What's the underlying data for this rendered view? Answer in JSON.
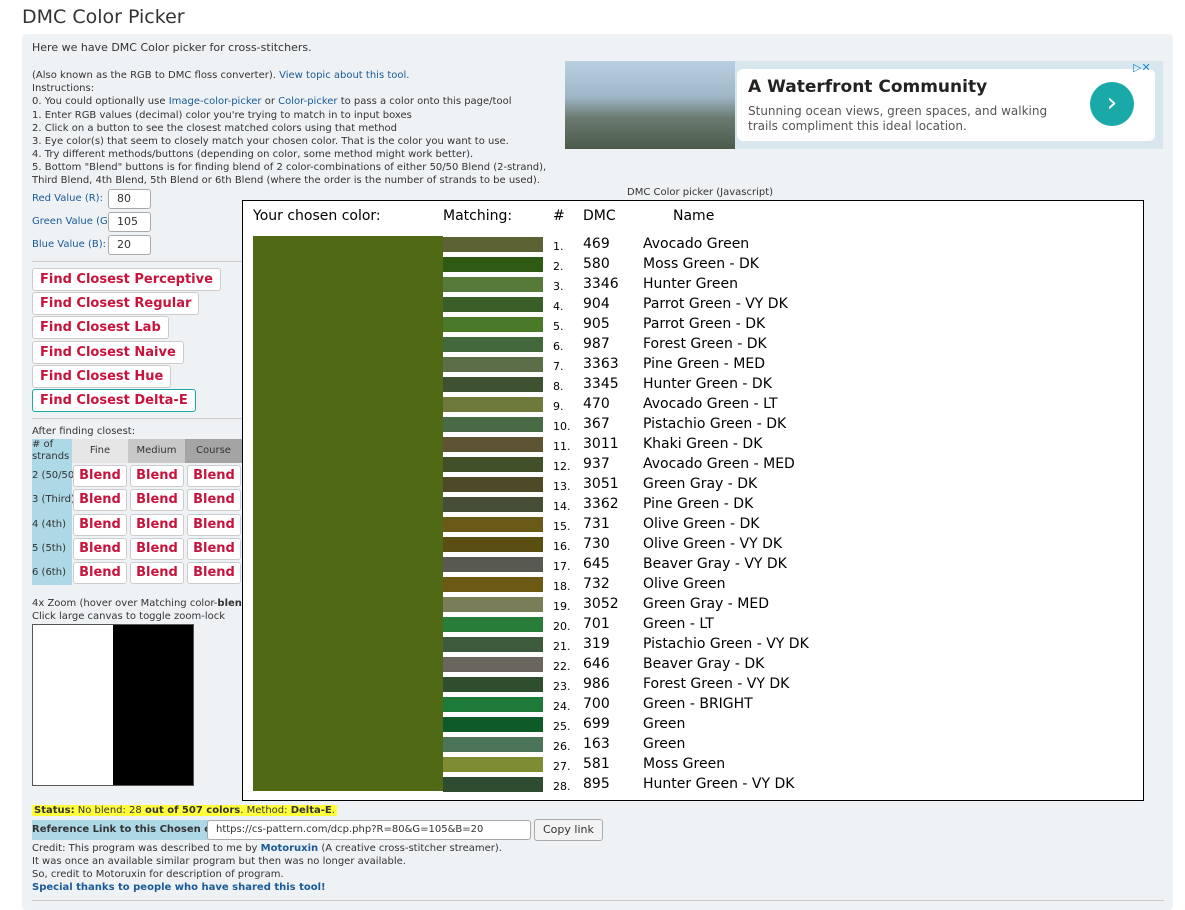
{
  "header": {
    "title": "DMC Color Picker"
  },
  "intro": "Here we have DMC Color picker for cross-stitchers.",
  "about": {
    "text": "(Also known as the RGB to DMC floss converter). ",
    "link": "View topic about this tool."
  },
  "instructions": {
    "heading": "Instructions:",
    "line0": [
      "0. You could optionally use ",
      "Image-color-picker",
      " or ",
      "Color-picker",
      " to pass a color onto this page/tool"
    ],
    "lines": [
      "1. Enter RGB values (decimal) color you're trying to match in to input boxes",
      "2. Click on a button to see the closest matched colors using that method",
      "3. Eye color(s) that seem to closely match your chosen color. That is the color you want to use.",
      "4. Try different methods/buttons (depending on color, some method might work better).",
      "5. Bottom \"Blend\" buttons is for finding blend of 2 color-combinations of either 50/50 Blend (2-strand), Third Blend, 4th Blend, 5th Blend or 6th Blend (where the order is the number of strands to be used)."
    ]
  },
  "inputs": [
    {
      "label": "Red Value (R):",
      "value": 80
    },
    {
      "label": "Green Value (G):",
      "value": 105
    },
    {
      "label": "Blue Value (B):",
      "value": 20
    }
  ],
  "buttons": [
    "Find Closest Perceptive",
    "Find Closest Regular",
    "Find Closest Lab",
    "Find Closest Naive",
    "Find Closest Hue",
    "Find Closest Delta-E"
  ],
  "blend_table": {
    "heading": "After finding closest:",
    "columns": [
      "# of strands",
      "Fine",
      "Medium",
      "Course"
    ],
    "rows": [
      {
        "label": "2 (50/50)",
        "cells": [
          "Blend",
          "Blend",
          "Blend"
        ]
      },
      {
        "label": "3 (Third)",
        "cells": [
          "Blend",
          "Blend",
          "Blend"
        ]
      },
      {
        "label": "4 (4th)",
        "cells": [
          "Blend",
          "Blend",
          "Blend"
        ]
      },
      {
        "label": "5 (5th)",
        "cells": [
          "Blend",
          "Blend",
          "Blend"
        ]
      },
      {
        "label": "6 (6th)",
        "cells": [
          "Blend",
          "Blend",
          "Blend"
        ]
      }
    ]
  },
  "zoom": {
    "line1": [
      "4x Zoom (hover over Matching color-",
      "blends",
      "):"
    ],
    "line2": "Click large canvas to toggle zoom-lock"
  },
  "ad": {
    "title": "A Waterfront Community",
    "text": "Stunning ocean views, green spaces, and walking trails compliment this ideal location."
  },
  "canvas": {
    "caption": "DMC Color picker (Javascript)",
    "headers": [
      "Your chosen color:",
      "Matching:",
      "#",
      "DMC",
      "Name"
    ],
    "chosen_color": "#506914",
    "matches": [
      {
        "index": "1.",
        "dmc": "469",
        "name": "Avocado Green",
        "color": "#5c6233"
      },
      {
        "index": "2.",
        "dmc": "580",
        "name": "Moss Green - DK",
        "color": "#2f5a14"
      },
      {
        "index": "3.",
        "dmc": "3346",
        "name": "Hunter Green",
        "color": "#567a3a"
      },
      {
        "index": "4.",
        "dmc": "904",
        "name": "Parrot Green - VY DK",
        "color": "#3a5e28"
      },
      {
        "index": "5.",
        "dmc": "905",
        "name": "Parrot Green - DK",
        "color": "#4a7a28"
      },
      {
        "index": "6.",
        "dmc": "987",
        "name": "Forest Green - DK",
        "color": "#42683c"
      },
      {
        "index": "7.",
        "dmc": "3363",
        "name": "Pine Green - MED",
        "color": "#5c6e48"
      },
      {
        "index": "8.",
        "dmc": "3345",
        "name": "Hunter Green - DK",
        "color": "#3e5232"
      },
      {
        "index": "9.",
        "dmc": "470",
        "name": "Avocado Green - LT",
        "color": "#6e7a3c"
      },
      {
        "index": "10.",
        "dmc": "367",
        "name": "Pistachio Green - DK",
        "color": "#486a44"
      },
      {
        "index": "11.",
        "dmc": "3011",
        "name": "Khaki Green - DK",
        "color": "#5e5434"
      },
      {
        "index": "12.",
        "dmc": "937",
        "name": "Avocado Green - MED",
        "color": "#42502a"
      },
      {
        "index": "13.",
        "dmc": "3051",
        "name": "Green Gray - DK",
        "color": "#4e4a28"
      },
      {
        "index": "14.",
        "dmc": "3362",
        "name": "Pine Green - DK",
        "color": "#464e38"
      },
      {
        "index": "15.",
        "dmc": "731",
        "name": "Olive Green - DK",
        "color": "#6a5a18"
      },
      {
        "index": "16.",
        "dmc": "730",
        "name": "Olive Green - VY DK",
        "color": "#5a4e10"
      },
      {
        "index": "17.",
        "dmc": "645",
        "name": "Beaver Gray - VY DK",
        "color": "#585a52"
      },
      {
        "index": "18.",
        "dmc": "732",
        "name": "Olive Green",
        "color": "#6c5a14"
      },
      {
        "index": "19.",
        "dmc": "3052",
        "name": "Green Gray - MED",
        "color": "#7a7e58"
      },
      {
        "index": "20.",
        "dmc": "701",
        "name": "Green - LT",
        "color": "#287e38"
      },
      {
        "index": "21.",
        "dmc": "319",
        "name": "Pistachio Green - VY DK",
        "color": "#3e5a3c"
      },
      {
        "index": "22.",
        "dmc": "646",
        "name": "Beaver Gray - DK",
        "color": "#6a665e"
      },
      {
        "index": "23.",
        "dmc": "986",
        "name": "Forest Green - VY DK",
        "color": "#2e4e2e"
      },
      {
        "index": "24.",
        "dmc": "700",
        "name": "Green - BRIGHT",
        "color": "#1e7a38"
      },
      {
        "index": "25.",
        "dmc": "699",
        "name": "Green",
        "color": "#0e5a28"
      },
      {
        "index": "26.",
        "dmc": "163",
        "name": "Green",
        "color": "#4c7458"
      },
      {
        "index": "27.",
        "dmc": "581",
        "name": "Moss Green",
        "color": "#7e8c32"
      },
      {
        "index": "28.",
        "dmc": "895",
        "name": "Hunter Green - VY DK",
        "color": "#2e4c30"
      }
    ]
  },
  "status": [
    "Status:",
    " No blend: 28 ",
    "out of 507 colors",
    ". Method: ",
    "Delta-E",
    "."
  ],
  "reference": {
    "label": "Reference Link to this Chosen color:",
    "url": "https://cs-pattern.com/dcp.php?R=80&G=105&B=20",
    "button": "Copy link"
  },
  "credit": {
    "line1": [
      "Credit: This program was described to me by ",
      "Motoruxin",
      " (A creative cross-stitcher streamer)."
    ],
    "line2": "It was once an available similar program but then was no longer available.",
    "line3": "So, credit to Motoruxin for description of program.",
    "line4": "Special thanks to people who have shared this tool!"
  }
}
